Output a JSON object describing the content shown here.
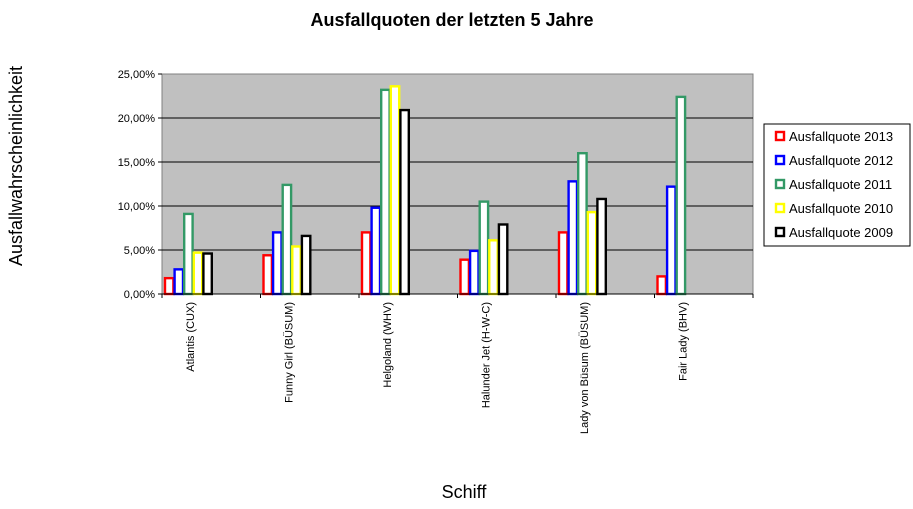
{
  "chart_data": {
    "type": "bar",
    "title": "Ausfallquoten der letzten 5 Jahre",
    "xlabel": "Schiff",
    "ylabel": "Ausfallwahrscheinlichkeit",
    "ylim": [
      0,
      0.25
    ],
    "yticks": [
      "0,00%",
      "5,00%",
      "10,00%",
      "15,00%",
      "20,00%",
      "25,00%"
    ],
    "grid": true,
    "legend_position": "right",
    "categories": [
      "Atlantis (CUX)",
      "Funny Girl (BÜSUM)",
      "Helgoland (WHV)",
      "Halunder Jet (H-W-C)",
      "Lady von Büsum (BÜSUM)",
      "Fair Lady (BHV)"
    ],
    "series": [
      {
        "name": "Ausfallquote 2013",
        "color": "#ff0000",
        "values": [
          0.018,
          0.044,
          0.07,
          0.039,
          0.07,
          0.02
        ]
      },
      {
        "name": "Ausfallquote 2012",
        "color": "#0000ff",
        "values": [
          0.028,
          0.07,
          0.098,
          0.049,
          0.128,
          0.122
        ]
      },
      {
        "name": "Ausfallquote 2011",
        "color": "#339966",
        "values": [
          0.091,
          0.124,
          0.232,
          0.105,
          0.16,
          0.224
        ]
      },
      {
        "name": "Ausfallquote 2010",
        "color": "#ffff00",
        "values": [
          0.047,
          0.054,
          0.236,
          0.061,
          0.093,
          0
        ]
      },
      {
        "name": "Ausfallquote 2009",
        "color": "#000000",
        "values": [
          0.046,
          0.066,
          0.209,
          0.079,
          0.108,
          0
        ]
      }
    ]
  }
}
